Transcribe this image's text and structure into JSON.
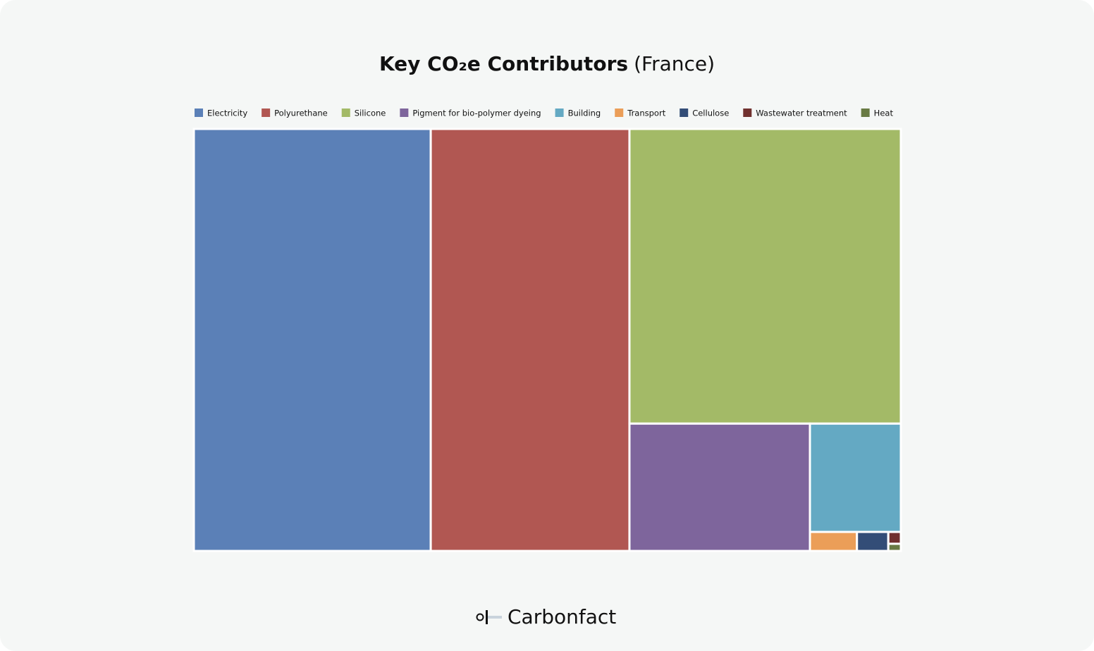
{
  "chart_data": {
    "type": "treemap",
    "title": "Key CO₂e Contributors",
    "subtitle": "(France)",
    "categories": [
      "Electricity",
      "Polyurethane",
      "Silicone",
      "Pigment for bio-polymer dyeing",
      "Building",
      "Transport",
      "Cellulose",
      "Wastewater treatment",
      "Heat"
    ],
    "values": [
      33.5,
      28.1,
      26.8,
      7.7,
      3.3,
      0.3,
      0.2,
      0.05,
      0.03
    ],
    "colors": [
      "#5b80b7",
      "#b15752",
      "#a3ba67",
      "#7e659c",
      "#64a9c3",
      "#eb9e58",
      "#334d77",
      "#70302e",
      "#687a43"
    ],
    "legend": "top"
  },
  "footer": {
    "brand": "Carbonfact"
  }
}
